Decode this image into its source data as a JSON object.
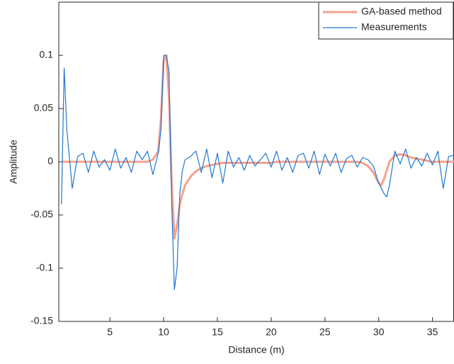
{
  "chart_data": {
    "type": "line",
    "xlabel": "Distance (m)",
    "ylabel": "Amplitude",
    "x": [
      0.5,
      0.75,
      1,
      1.5,
      2,
      2.5,
      3,
      3.5,
      4,
      4.5,
      5,
      5.5,
      6,
      6.5,
      7,
      7.5,
      8,
      8.5,
      9,
      9.5,
      9.75,
      10,
      10.25,
      10.5,
      10.75,
      11,
      11.25,
      11.5,
      11.75,
      12,
      12.5,
      13,
      13.5,
      14,
      14.5,
      15,
      15.5,
      16,
      16.5,
      17,
      17.5,
      18,
      18.5,
      19,
      19.5,
      20,
      20.5,
      21,
      21.5,
      22,
      22.5,
      23,
      23.5,
      24,
      24.5,
      25,
      25.5,
      26,
      26.5,
      27,
      27.5,
      28,
      28.5,
      29,
      29.5,
      30,
      30.25,
      30.5,
      30.75,
      31,
      31.5,
      32,
      32.5,
      33,
      33.5,
      34,
      34.5,
      35,
      35.5,
      36,
      36.5,
      37
    ],
    "series": [
      {
        "name": "GA-based method",
        "color": "#f4a08c",
        "width": 3,
        "values": [
          0,
          0,
          0,
          0,
          0,
          0,
          0,
          0,
          0,
          0,
          0,
          0,
          0,
          0,
          0,
          0,
          0,
          0,
          0.002,
          0.01,
          0.04,
          0.095,
          0.1,
          0.06,
          -0.02,
          -0.072,
          -0.06,
          -0.04,
          -0.03,
          -0.022,
          -0.014,
          -0.009,
          -0.006,
          -0.004,
          -0.003,
          -0.002,
          -0.001,
          -0.001,
          -0.001,
          -0.001,
          -0.001,
          -0.001,
          -0.001,
          -0.001,
          -0.001,
          -0.001,
          0,
          0,
          0,
          0,
          0,
          0,
          0,
          0,
          0,
          0,
          0,
          0,
          0,
          0,
          0,
          0,
          -0.001,
          -0.004,
          -0.01,
          -0.02,
          -0.022,
          -0.016,
          -0.008,
          0,
          0.006,
          0.007,
          0.006,
          0.004,
          0.003,
          0.002,
          0.001,
          0,
          0,
          0,
          0,
          0
        ]
      },
      {
        "name": "Measurements",
        "color": "#1f77d0",
        "width": 1.2,
        "values": [
          -0.04,
          0.088,
          0.03,
          -0.025,
          0.005,
          0.008,
          -0.01,
          0.01,
          -0.005,
          0.002,
          -0.008,
          0.012,
          -0.006,
          0.004,
          -0.01,
          0.01,
          0.002,
          0.01,
          -0.012,
          0.008,
          0.03,
          0.1,
          0.1,
          0.085,
          -0.04,
          -0.12,
          -0.1,
          -0.03,
          -0.008,
          0.002,
          0.005,
          0.01,
          -0.01,
          0.012,
          -0.015,
          0.008,
          -0.02,
          0.01,
          -0.005,
          0.004,
          -0.008,
          0.006,
          -0.004,
          0.002,
          0.008,
          -0.005,
          0.01,
          -0.008,
          0.004,
          -0.01,
          0.006,
          0.008,
          -0.006,
          0.01,
          -0.012,
          0.007,
          -0.004,
          0.008,
          -0.01,
          0.003,
          0.006,
          -0.005,
          0.004,
          0.002,
          -0.004,
          -0.02,
          -0.025,
          -0.03,
          -0.033,
          -0.022,
          0.01,
          -0.002,
          0.012,
          -0.006,
          0.004,
          -0.004,
          0.008,
          -0.003,
          0.01,
          -0.025,
          0.005,
          0.006
        ]
      }
    ],
    "xlim": [
      0.25,
      37
    ],
    "ylim": [
      -0.15,
      0.15
    ],
    "xticks": [
      5,
      10,
      15,
      20,
      25,
      30,
      35
    ],
    "yticks": [
      -0.15,
      -0.1,
      -0.05,
      0,
      0.05,
      0.1
    ],
    "legend": "upper right"
  }
}
